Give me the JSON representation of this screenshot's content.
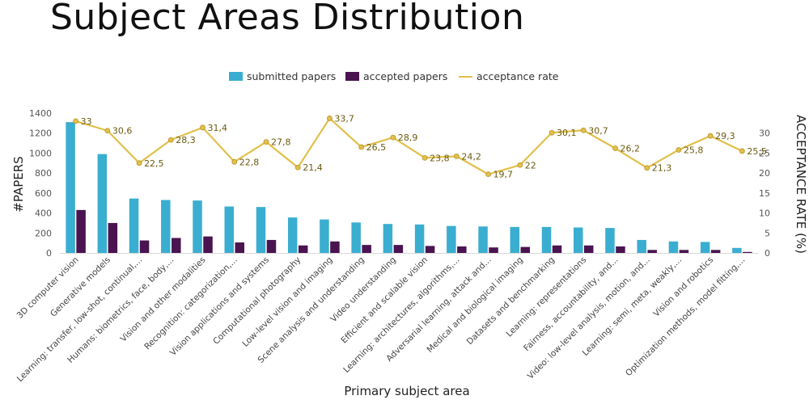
{
  "slide": {
    "title": "Subject Areas Distribution"
  },
  "chart_data": {
    "type": "bar",
    "title": "Subject Areas Distribution",
    "xlabel": "Primary subject area",
    "ylabel": "#PAPERS",
    "y2label": "ACCEPTANCE RATE (%)",
    "ylim": [
      0,
      1400
    ],
    "y2lim": [
      0,
      35
    ],
    "yticks": [
      0,
      200,
      400,
      600,
      800,
      1000,
      1200,
      1400
    ],
    "y2ticks": [
      0,
      5,
      10,
      15,
      20,
      25,
      30
    ],
    "legend_position": "top-center",
    "grid": false,
    "categories": [
      "3D computer vision",
      "Generative models",
      "Learning: transfer, low-shot, continual,...",
      "Humans: biometrics, face, body,...",
      "Vision and other modalities",
      "Recognition: categorization,...",
      "Vision applications and systems",
      "Computational photography",
      "Low-level vision and imaging",
      "Scene analysis and understanding",
      "Video understanding",
      "Efficient and scalable vision",
      "Learning: architectures, algorithms,...",
      "Adversarial learning, attack and...",
      "Medical and biological imaging",
      "Datasets and benchmarking",
      "Learning: representations",
      "Fairness, accountability, and...",
      "Video: low-level analysis, motion, and...",
      "Learning: semi, meta, weakly,...",
      "Vision and robotics",
      "Optimization methods, model fitting,..."
    ],
    "series": [
      {
        "name": "submitted papers",
        "type": "bar",
        "axis": "left",
        "color": "#3aaed0",
        "values": [
          1310,
          990,
          545,
          530,
          525,
          465,
          460,
          355,
          335,
          305,
          290,
          285,
          270,
          265,
          260,
          260,
          255,
          250,
          130,
          115,
          110,
          50
        ]
      },
      {
        "name": "accepted papers",
        "type": "bar",
        "axis": "left",
        "color": "#4a1450",
        "values": [
          430,
          300,
          125,
          150,
          165,
          105,
          130,
          75,
          115,
          80,
          80,
          70,
          65,
          55,
          60,
          75,
          75,
          65,
          30,
          30,
          30,
          10
        ]
      },
      {
        "name": "acceptance rate",
        "type": "line",
        "axis": "right",
        "color": "#e2bf4a",
        "labels": [
          "33",
          "30,6",
          "22,5",
          "28,3",
          "31,4",
          "22,8",
          "27,8",
          "21,4",
          "33,7",
          "26,5",
          "28,9",
          "23,8",
          "24,2",
          "19,7",
          "22",
          "30,1",
          "30,7",
          "26,2",
          "21,3",
          "25,8",
          "29,3",
          "25,5"
        ],
        "values": [
          33,
          30.6,
          22.5,
          28.3,
          31.4,
          22.8,
          27.8,
          21.4,
          33.7,
          26.5,
          28.9,
          23.8,
          24.2,
          19.7,
          22,
          30.1,
          30.7,
          26.2,
          21.3,
          25.8,
          29.3,
          25.5
        ]
      }
    ]
  }
}
